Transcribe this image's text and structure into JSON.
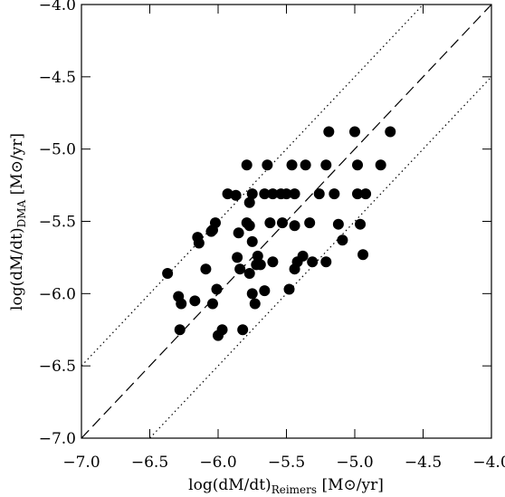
{
  "chart_data": {
    "type": "scatter",
    "xlabel": {
      "main": "log(dM/dt)",
      "sub": "Reimers",
      "unit": " [M⊙/yr]"
    },
    "ylabel": {
      "main": "log(dM/dt)",
      "sub": "DMA",
      "unit": " [M⊙/yr]"
    },
    "xlim": [
      -7.0,
      -4.0
    ],
    "ylim": [
      -7.0,
      -4.0
    ],
    "xticks": [
      {
        "value": -7.0,
        "label": "−7.0"
      },
      {
        "value": -6.5,
        "label": "−6.5"
      },
      {
        "value": -6.0,
        "label": "−6.0"
      },
      {
        "value": -5.5,
        "label": "−5.5"
      },
      {
        "value": -5.0,
        "label": "−5.0"
      },
      {
        "value": -4.5,
        "label": "−4.5"
      },
      {
        "value": -4.0,
        "label": "−4.0"
      }
    ],
    "yticks": [
      {
        "value": -7.0,
        "label": "−7.0"
      },
      {
        "value": -6.5,
        "label": "−6.5"
      },
      {
        "value": -6.0,
        "label": "−6.0"
      },
      {
        "value": -5.5,
        "label": "−5.5"
      },
      {
        "value": -5.0,
        "label": "−5.0"
      },
      {
        "value": -4.5,
        "label": "−4.5"
      },
      {
        "value": -4.0,
        "label": "−4.0"
      }
    ],
    "color": "#000000",
    "reference_lines": [
      {
        "slope": 1,
        "intercept": 0,
        "style": "dashed"
      },
      {
        "slope": 1,
        "intercept": 0.5,
        "style": "dotted"
      },
      {
        "slope": 1,
        "intercept": -0.5,
        "style": "dotted"
      }
    ],
    "x": [
      -6.37,
      -6.29,
      -6.27,
      -6.28,
      -6.15,
      -6.14,
      -6.17,
      -6.09,
      -6.05,
      -6.02,
      -6.04,
      -6.04,
      -6.01,
      -6.0,
      -5.97,
      -5.93,
      -5.87,
      -5.85,
      -5.86,
      -5.84,
      -5.82,
      -5.79,
      -5.77,
      -5.79,
      -5.77,
      -5.75,
      -5.77,
      -5.75,
      -5.73,
      -5.75,
      -5.71,
      -5.69,
      -5.66,
      -5.66,
      -5.64,
      -5.62,
      -5.6,
      -5.6,
      -5.54,
      -5.53,
      -5.5,
      -5.46,
      -5.44,
      -5.44,
      -5.48,
      -5.44,
      -5.42,
      -5.38,
      -5.36,
      -5.33,
      -5.31,
      -5.26,
      -5.21,
      -5.19,
      -5.21,
      -5.15,
      -5.12,
      -5.09,
      -5.0,
      -4.98,
      -4.98,
      -4.96,
      -4.94,
      -4.92,
      -4.81,
      -4.74,
      -5.72
    ],
    "y": [
      -5.86,
      -6.02,
      -6.07,
      -6.25,
      -5.61,
      -5.65,
      -6.05,
      -5.83,
      -5.57,
      -5.51,
      -5.56,
      -6.07,
      -5.97,
      -6.29,
      -6.25,
      -5.31,
      -5.32,
      -5.58,
      -5.75,
      -5.83,
      -6.25,
      -5.11,
      -5.37,
      -5.51,
      -5.53,
      -5.64,
      -5.86,
      -6.0,
      -6.07,
      -5.31,
      -5.74,
      -5.8,
      -5.31,
      -5.98,
      -5.11,
      -5.51,
      -5.78,
      -5.31,
      -5.31,
      -5.51,
      -5.31,
      -5.11,
      -5.31,
      -5.53,
      -5.97,
      -5.83,
      -5.78,
      -5.74,
      -5.11,
      -5.51,
      -5.78,
      -5.31,
      -5.78,
      -4.88,
      -5.11,
      -5.31,
      -5.52,
      -5.63,
      -4.88,
      -5.11,
      -5.31,
      -5.52,
      -5.73,
      -5.31,
      -5.11,
      -4.88,
      -5.8
    ]
  }
}
